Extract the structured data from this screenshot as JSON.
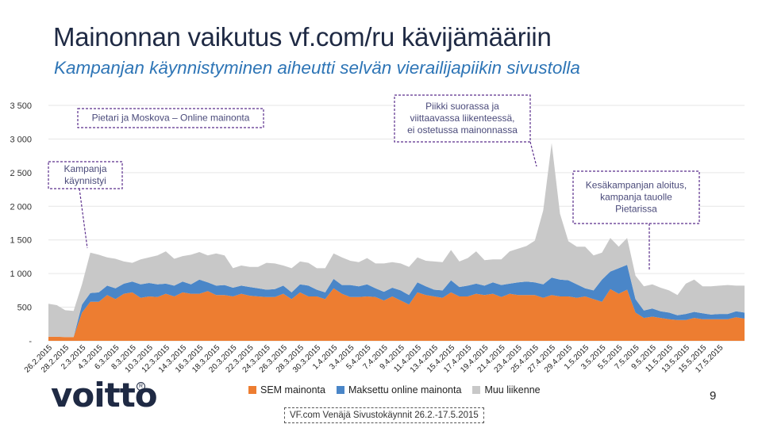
{
  "header": {
    "title": "Mainonnan vaikutus vf.com/ru kävijämääriin",
    "subtitle": "Kampanjan käynnistyminen aiheutti selvän vierailijapiikin sivustolla"
  },
  "chart_data": {
    "type": "area",
    "stacked": true,
    "title": "",
    "xlabel": "",
    "ylabel": "",
    "ylim": [
      0,
      3500
    ],
    "yticks": [
      0,
      500,
      1000,
      1500,
      2000,
      2500,
      3000,
      3500
    ],
    "yticklabels": [
      "-",
      "500",
      "1 000",
      "1 500",
      "2 000",
      "2 500",
      "3 000",
      "3 500"
    ],
    "x_start_date": "2015-02-26",
    "x_end_date": "2015-05-17",
    "xticklabels": [
      "26.2.2015",
      "28.2.2015",
      "2.3.2015",
      "4.3.2015",
      "6.3.2015",
      "8.3.2015",
      "10.3.2015",
      "12.3.2015",
      "14.3.2015",
      "16.3.2015",
      "18.3.2015",
      "20.3.2015",
      "22.3.2015",
      "24.3.2015",
      "26.3.2015",
      "28.3.2015",
      "30.3.2015",
      "1.4.2015",
      "3.4.2015",
      "5.4.2015",
      "7.4.2015",
      "9.4.2015",
      "11.4.2015",
      "13.4.2015",
      "15.4.2015",
      "17.4.2015",
      "19.4.2015",
      "21.4.2015",
      "23.4.2015",
      "25.4.2015",
      "27.4.2015",
      "29.4.2015",
      "1.5.2015",
      "3.5.2015",
      "5.5.2015",
      "7.5.2015",
      "9.5.2015",
      "11.5.2015",
      "13.5.2015",
      "15.5.2015",
      "17.5.2015"
    ],
    "legend_position": "bottom",
    "series": [
      {
        "name": "SEM mainonta",
        "color": "#ed7d31",
        "values": [
          60,
          60,
          55,
          55,
          420,
          580,
          580,
          680,
          620,
          700,
          720,
          640,
          660,
          650,
          700,
          660,
          720,
          700,
          700,
          740,
          680,
          680,
          660,
          700,
          670,
          660,
          650,
          650,
          700,
          620,
          720,
          660,
          660,
          620,
          780,
          700,
          650,
          650,
          660,
          650,
          600,
          660,
          600,
          540,
          720,
          680,
          660,
          640,
          720,
          660,
          660,
          700,
          680,
          700,
          650,
          700,
          680,
          680,
          680,
          640,
          680,
          660,
          660,
          640,
          660,
          620,
          580,
          770,
          700,
          760,
          420,
          340,
          360,
          340,
          320,
          310,
          310,
          340,
          320,
          320,
          320,
          320,
          350,
          330
        ]
      },
      {
        "name": "Maksettu online mainonta",
        "color": "#4a86c8",
        "values": [
          0,
          0,
          0,
          0,
          120,
          130,
          140,
          140,
          160,
          150,
          160,
          200,
          200,
          190,
          150,
          160,
          160,
          140,
          210,
          130,
          140,
          150,
          130,
          120,
          130,
          120,
          110,
          120,
          120,
          100,
          120,
          160,
          100,
          100,
          140,
          130,
          180,
          160,
          180,
          130,
          130,
          130,
          150,
          140,
          150,
          130,
          100,
          110,
          180,
          140,
          160,
          150,
          140,
          170,
          180,
          150,
          190,
          200,
          190,
          200,
          260,
          250,
          240,
          200,
          120,
          130,
          330,
          260,
          380,
          370,
          200,
          110,
          120,
          100,
          100,
          70,
          90,
          90,
          90,
          70,
          80,
          80,
          90,
          90
        ]
      },
      {
        "name": "Muu liikenne",
        "color": "#c8c8c8",
        "values": [
          490,
          470,
          400,
          390,
          300,
          600,
          560,
          420,
          440,
          330,
          280,
          370,
          380,
          430,
          480,
          400,
          380,
          440,
          410,
          400,
          480,
          440,
          290,
          300,
          300,
          320,
          400,
          380,
          300,
          360,
          340,
          340,
          320,
          360,
          380,
          410,
          360,
          360,
          390,
          370,
          420,
          380,
          400,
          420,
          370,
          380,
          420,
          420,
          450,
          380,
          410,
          480,
          380,
          340,
          380,
          480,
          500,
          530,
          620,
          1100,
          2000,
          980,
          580,
          560,
          620,
          520,
          400,
          500,
          320,
          400,
          350,
          360,
          360,
          350,
          330,
          300,
          450,
          480,
          400,
          420,
          420,
          430,
          380,
          400
        ]
      }
    ],
    "annotations": [
      {
        "id": "campaign-start",
        "text": [
          "Kampanja",
          "käynnistyi"
        ]
      },
      {
        "id": "online-ads",
        "text": [
          "Pietari ja Moskova – Online mainonta"
        ]
      },
      {
        "id": "peak",
        "text": [
          "Piikki suorassa ja",
          "viittaavassa liikenteessä,",
          "ei ostetussa mainonnassa"
        ]
      },
      {
        "id": "summer-campaign",
        "text": [
          "Kesäkampanjan aloitus,",
          "kampanja tauolle",
          "Pietarissa"
        ]
      }
    ]
  },
  "footer": {
    "logo_text": "voitto",
    "logo_mark": "R",
    "page_number": "9",
    "source": "VF.com Venäjä Sivustokäynnit 26.2.-17.5.2015"
  }
}
